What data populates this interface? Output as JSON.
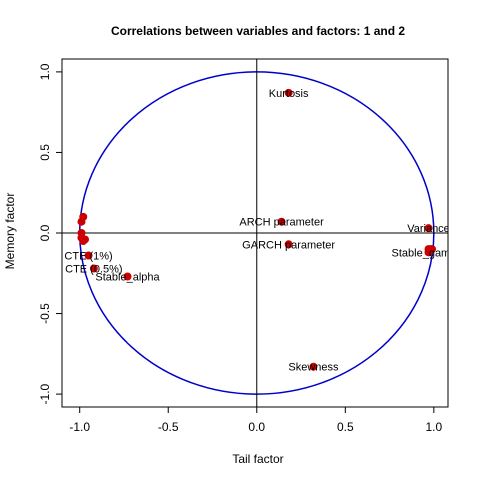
{
  "chart_data": {
    "type": "scatter",
    "title": "Correlations between variables and factors: 1 and 2",
    "xlabel": "Tail factor",
    "ylabel": "Memory factor",
    "xlim": [
      -1.1,
      1.08
    ],
    "ylim": [
      -1.08,
      1.08
    ],
    "xticks": [
      -1.0,
      -0.5,
      0.0,
      0.5,
      1.0
    ],
    "xtick_labels": [
      "-1.0",
      "-0.5",
      "0.0",
      "0.5",
      "1.0"
    ],
    "yticks": [
      -1.0,
      -0.5,
      0.0,
      0.5,
      1.0
    ],
    "ytick_labels": [
      "-1.0",
      "-0.5",
      "0.0",
      "0.5",
      "1.0"
    ],
    "grid": false,
    "unit_circle": true,
    "reference_lines": [
      0,
      0
    ],
    "colors": {
      "points": "#cc0000",
      "circle": "#0000cc",
      "axes": "#000000"
    },
    "points": [
      {
        "label": "Kurtosis",
        "x": 0.18,
        "y": 0.87
      },
      {
        "label": "ARCH parameter",
        "x": 0.14,
        "y": 0.07
      },
      {
        "label": "GARCH parameter",
        "x": 0.18,
        "y": -0.07
      },
      {
        "label": "Skewness",
        "x": 0.32,
        "y": -0.83
      },
      {
        "label": "Variance",
        "x": 0.97,
        "y": 0.03
      },
      {
        "label": "Stable_gamma",
        "x": 0.97,
        "y": -0.12
      },
      {
        "label": "Stable_alpha",
        "x": -0.73,
        "y": -0.27
      },
      {
        "label": "CTE (1%)",
        "x": -0.95,
        "y": -0.14
      },
      {
        "label": "CTE (0.5%)",
        "x": -0.92,
        "y": -0.22
      },
      {
        "label": "",
        "x": -0.98,
        "y": 0.1
      },
      {
        "label": "",
        "x": -0.99,
        "y": 0.07
      },
      {
        "label": "",
        "x": -0.99,
        "y": 0.0
      },
      {
        "label": "",
        "x": -0.99,
        "y": -0.03
      },
      {
        "label": "",
        "x": -0.98,
        "y": -0.05
      },
      {
        "label": "",
        "x": -0.97,
        "y": -0.04
      },
      {
        "label": "",
        "x": 0.97,
        "y": -0.1
      },
      {
        "label": "",
        "x": 0.98,
        "y": -0.1
      },
      {
        "label": "",
        "x": 0.99,
        "y": -0.1
      }
    ]
  }
}
